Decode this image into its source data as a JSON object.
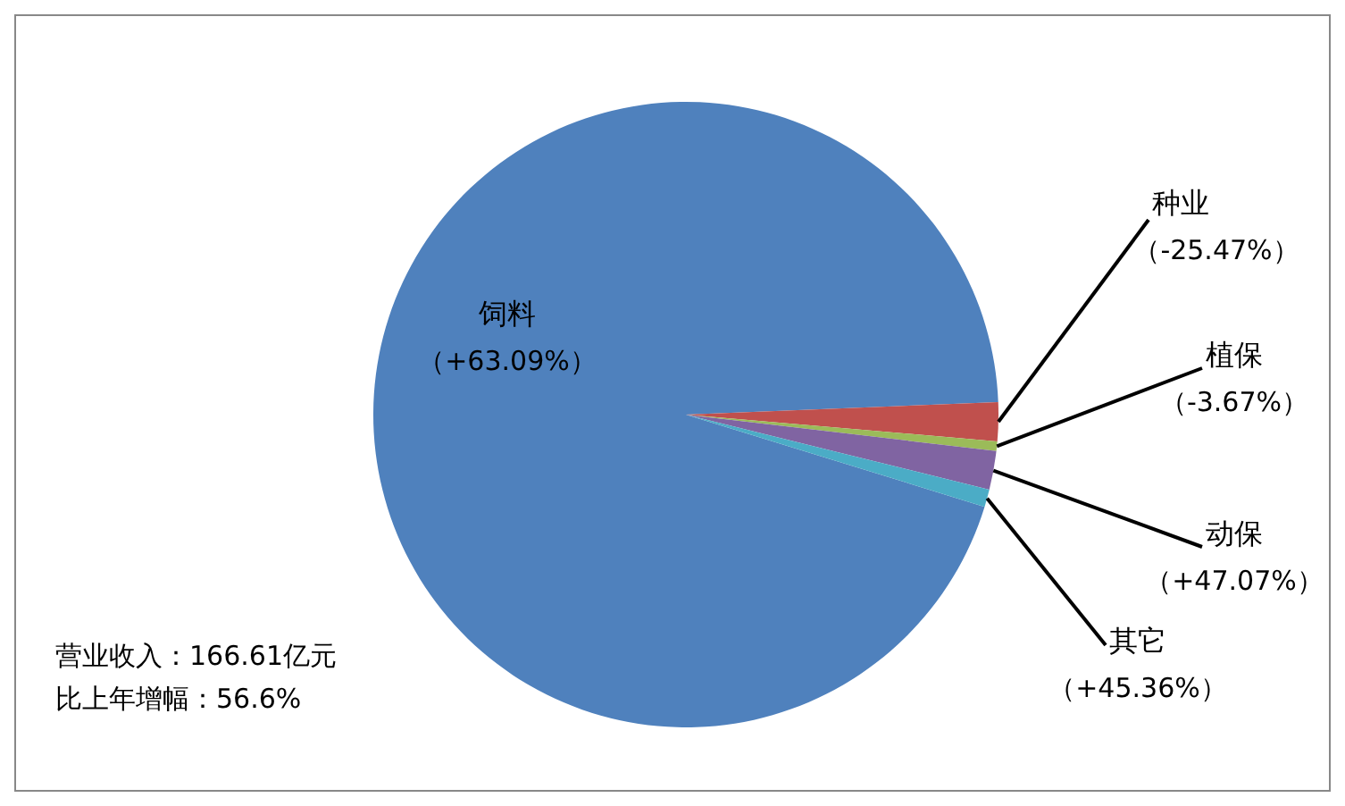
{
  "chart_data": {
    "type": "pie",
    "categories": [
      "饲料",
      "种业",
      "植保",
      "动保",
      "其它"
    ],
    "values": [
      94.6,
      2.0,
      0.5,
      2.0,
      0.9
    ],
    "colors": [
      "#4f81bd",
      "#c0504d",
      "#9bbb59",
      "#8064a2",
      "#4bacc6"
    ],
    "annotations": [
      {
        "text": "（+63.09%）",
        "x": "饲料"
      },
      {
        "text": "（-25.47%）",
        "x": "种业"
      },
      {
        "text": "（-3.67%）",
        "x": "植保"
      },
      {
        "text": "（+47.07%）",
        "x": "动保"
      },
      {
        "text": "（+45.36%）",
        "x": "其它"
      },
      "营业收入：166.61亿元",
      "比上年增幅：56.6%"
    ],
    "legend": false
  }
}
